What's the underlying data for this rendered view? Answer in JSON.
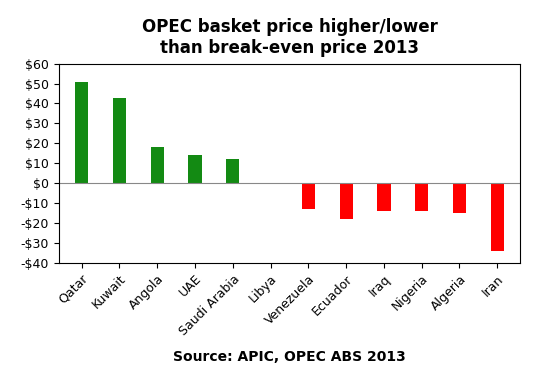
{
  "chart_data": {
    "type": "bar",
    "title": "OPEC basket price higher/lower\nthan break-even price 2013",
    "source": "Source: APIC, OPEC ABS 2013",
    "categories": [
      "Qatar",
      "Kuwait",
      "Angola",
      "UAE",
      "Saudi Arabia",
      "Libya",
      "Venezuela",
      "Ecuador",
      "Iraq",
      "Nigeria",
      "Algeria",
      "Iran"
    ],
    "values": [
      51,
      43,
      18,
      14,
      12,
      0,
      -13,
      -18,
      -14,
      -14,
      -15,
      -34
    ],
    "colors": [
      "#138a13",
      "#138a13",
      "#138a13",
      "#138a13",
      "#138a13",
      "#138a13",
      "#ff0000",
      "#ff0000",
      "#ff0000",
      "#ff0000",
      "#ff0000",
      "#ff0000"
    ],
    "ylim": [
      -40,
      60
    ],
    "yticks": [
      {
        "value": -40,
        "label": "-$40"
      },
      {
        "value": -30,
        "label": "-$30"
      },
      {
        "value": -20,
        "label": "-$20"
      },
      {
        "value": -10,
        "label": "-$10"
      },
      {
        "value": 0,
        "label": "$0"
      },
      {
        "value": 10,
        "label": "$10"
      },
      {
        "value": 20,
        "label": "$20"
      },
      {
        "value": 30,
        "label": "$30"
      },
      {
        "value": 40,
        "label": "$40"
      },
      {
        "value": 50,
        "label": "$50"
      },
      {
        "value": 60,
        "label": "$60"
      }
    ],
    "grid": false
  }
}
